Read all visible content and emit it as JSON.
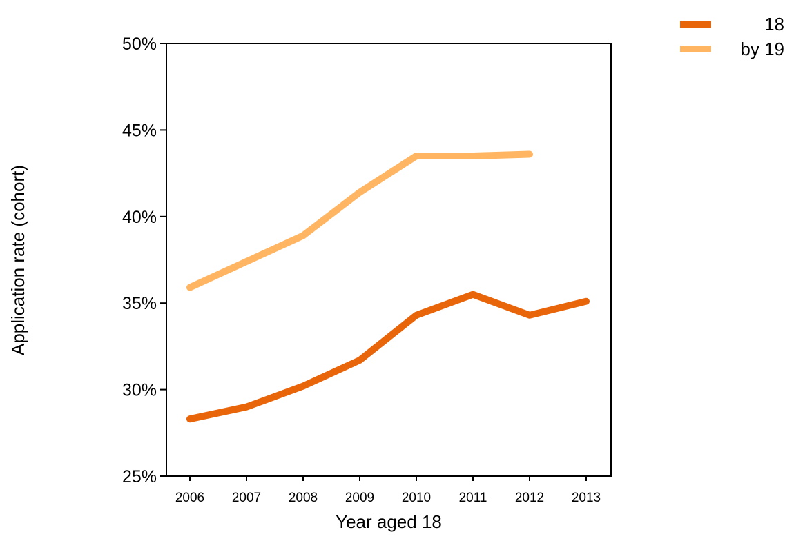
{
  "chart_data": {
    "type": "line",
    "title": "",
    "xlabel": "Year aged 18",
    "ylabel": "Application rate (cohort)",
    "x": [
      2006,
      2007,
      2008,
      2009,
      2010,
      2011,
      2012,
      2013
    ],
    "xtick_labels": [
      "2006",
      "2007",
      "2008",
      "2009",
      "2010",
      "2011",
      "2012",
      "2013"
    ],
    "ylim": [
      0.25,
      0.5
    ],
    "yticks": [
      0.25,
      0.3,
      0.35,
      0.4,
      0.45,
      0.5
    ],
    "ytick_labels": [
      "25%",
      "30%",
      "35%",
      "40%",
      "45%",
      "50%"
    ],
    "grid": false,
    "legend_position": "top-right",
    "series": [
      {
        "name": "18",
        "color": "#e8650a",
        "values": [
          0.283,
          0.29,
          0.302,
          0.317,
          0.343,
          0.355,
          0.343,
          0.351
        ]
      },
      {
        "name": "by 19",
        "color": "#ffb562",
        "values": [
          0.359,
          0.374,
          0.389,
          0.414,
          0.435,
          0.435,
          0.436,
          null
        ]
      }
    ]
  }
}
